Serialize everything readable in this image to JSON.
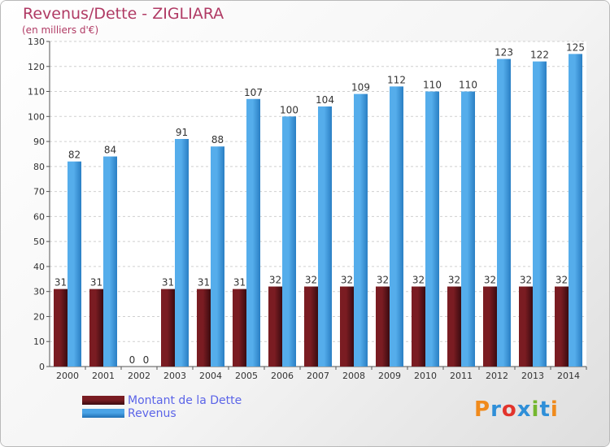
{
  "header": {
    "title": "Revenus/Dette - ZIGLIARA",
    "subtitle": "(en milliers d'€)"
  },
  "chart_data": {
    "type": "bar",
    "title": "Revenus/Dette - ZIGLIARA",
    "subtitle": "(en milliers d'€)",
    "categories": [
      "2000",
      "2001",
      "2002",
      "2003",
      "2004",
      "2005",
      "2006",
      "2007",
      "2008",
      "2009",
      "2010",
      "2011",
      "2012",
      "2013",
      "2014"
    ],
    "series": [
      {
        "name": "Montant de la Dette",
        "color": "#7a1c22",
        "values": [
          31,
          31,
          0,
          31,
          31,
          31,
          32,
          32,
          32,
          32,
          32,
          32,
          32,
          32,
          32
        ]
      },
      {
        "name": "Revenus",
        "color": "#4aa3e6",
        "values": [
          82,
          84,
          0,
          91,
          88,
          107,
          100,
          104,
          109,
          112,
          110,
          110,
          123,
          122,
          125
        ]
      }
    ],
    "yticks": [
      0,
      10,
      20,
      30,
      40,
      50,
      60,
      70,
      80,
      90,
      100,
      110,
      120,
      130
    ],
    "ylim": [
      0,
      130
    ],
    "grid": true,
    "legend_position": "bottom-left"
  },
  "legend": {
    "items": [
      {
        "label": "Montant de la Dette",
        "color": "#7a1c22"
      },
      {
        "label": "Revenus",
        "color": "#4aa3e6"
      }
    ]
  },
  "logo": {
    "text": "Proxiti",
    "letters": [
      "P",
      "r",
      "o",
      "x",
      "i",
      "t",
      "i"
    ],
    "colors": [
      "#f08a1c",
      "#2f8fd8",
      "#e2342c",
      "#2f8fd8",
      "#74b72e",
      "#2f8fd8",
      "#f08a1c"
    ]
  }
}
